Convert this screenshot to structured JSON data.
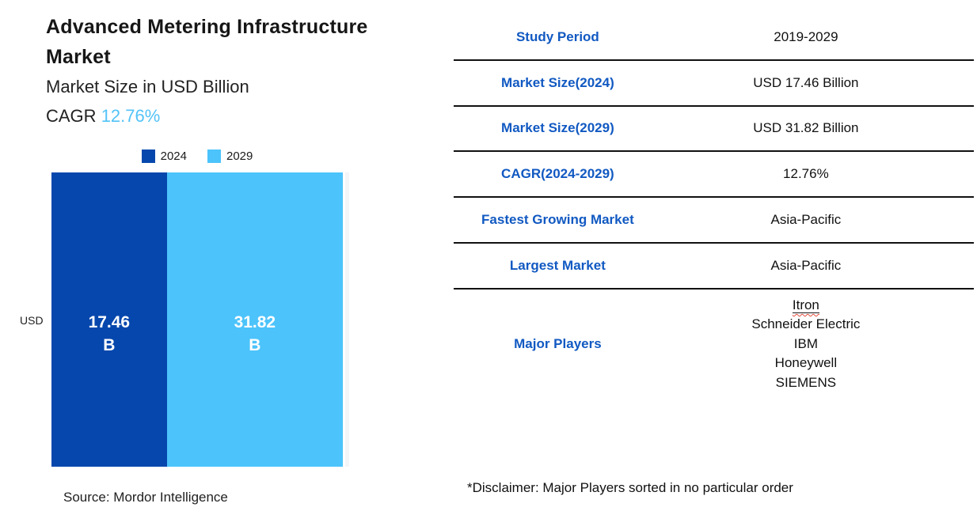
{
  "header": {
    "title": "Advanced Metering Infrastructure Market",
    "subtitle": "Market Size in USD Billion",
    "cagr_label": "CAGR ",
    "cagr_value": "12.76%",
    "cagr_color": "#53c3f8"
  },
  "chart_data": {
    "type": "bar",
    "variant": "proportional-horizontal-stacked",
    "title": "Advanced Metering Infrastructure Market",
    "unit_axis_label": "USD",
    "value_unit": "USD Billion",
    "categories": [
      "2024",
      "2029"
    ],
    "series": [
      {
        "name": "2024",
        "value": 17.46,
        "label": "17.46",
        "suffix": "B",
        "color": "#0647ad"
      },
      {
        "name": "2029",
        "value": 31.82,
        "label": "31.82",
        "suffix": "B",
        "color": "#4cc3fb"
      }
    ],
    "legend_position": "top-center",
    "grid": "off",
    "source": "Source: Mordor Intelligence"
  },
  "table": {
    "label_color": "#1159c2",
    "rows": [
      {
        "label": "Study Period",
        "value": "2019-2029"
      },
      {
        "label": "Market Size(2024)",
        "value": "USD 17.46 Billion"
      },
      {
        "label": "Market Size(2029)",
        "value": "USD 31.82 Billion"
      },
      {
        "label": "CAGR(2024-2029)",
        "value": "12.76%"
      },
      {
        "label": "Fastest Growing Market",
        "value": "Asia-Pacific"
      },
      {
        "label": "Largest Market",
        "value": "Asia-Pacific"
      }
    ],
    "major_players": {
      "label": "Major Players",
      "values": [
        "Itron",
        "Schneider Electric",
        "IBM",
        "Honeywell",
        "SIEMENS"
      ]
    }
  },
  "footer": {
    "disclaimer": "*Disclaimer: Major Players sorted in no particular order"
  }
}
